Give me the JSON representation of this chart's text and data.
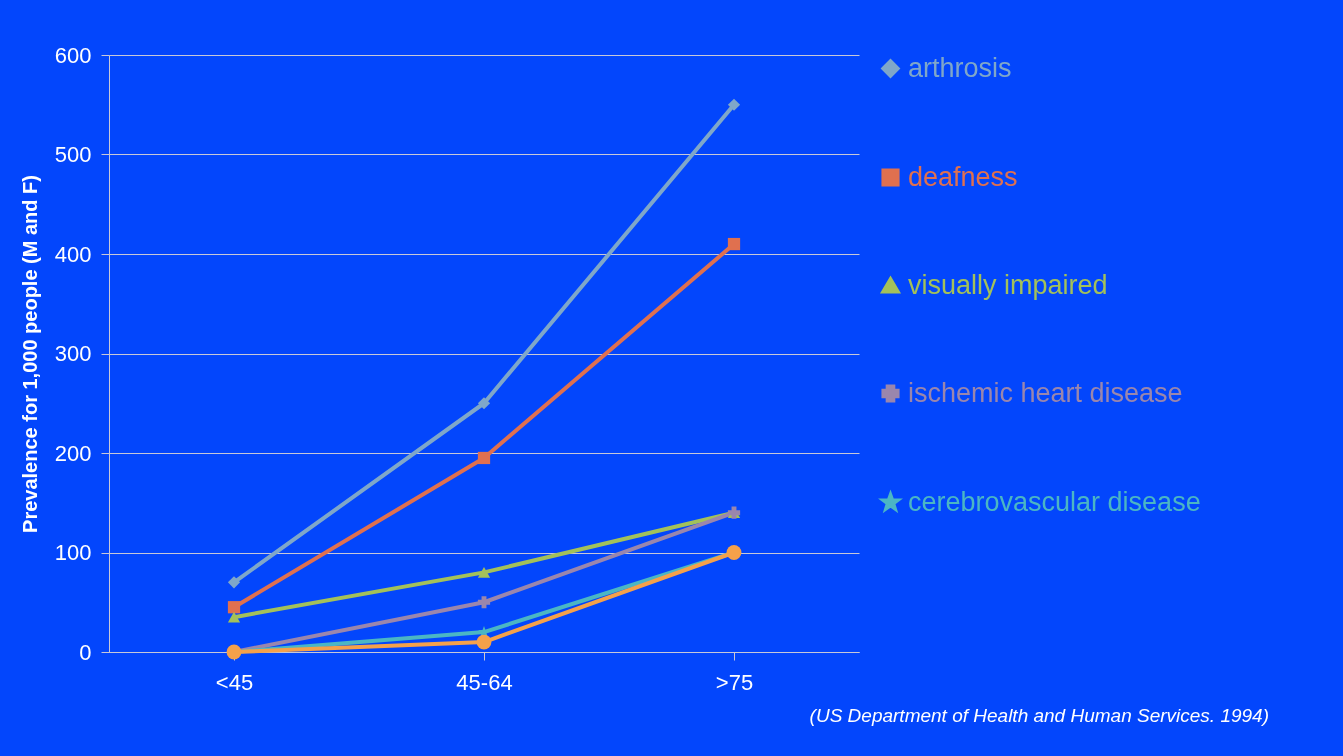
{
  "chart_data": {
    "type": "line",
    "ylabel": "Prevalence for 1,000 people (M and F)",
    "categories": [
      "<45",
      "45-64",
      ">75"
    ],
    "ylim": [
      0,
      600
    ],
    "yticks": [
      0,
      100,
      200,
      300,
      400,
      500,
      600
    ],
    "grid": "y",
    "legend": "right",
    "annotations": [
      "(US Department of Health and Human Services. 1994)"
    ],
    "series": [
      {
        "name": "arthrosis",
        "color": "#7fa7c9",
        "marker": "diamond",
        "values": [
          70,
          250,
          550
        ]
      },
      {
        "name": "deafness",
        "color": "#e0704f",
        "marker": "square",
        "values": [
          45,
          195,
          410
        ]
      },
      {
        "name": "visually impaired",
        "color": "#a3c15a",
        "marker": "triangle",
        "values": [
          35,
          80,
          140
        ]
      },
      {
        "name": "ischemic heart disease",
        "color": "#9a86ad",
        "marker": "cross",
        "values": [
          0,
          50,
          140
        ]
      },
      {
        "name": "cerebrovascular disease",
        "color": "#4bb6c4",
        "marker": "star",
        "values": [
          0,
          20,
          100
        ]
      },
      {
        "color": "#f5a14a",
        "marker": "circle",
        "values": [
          0,
          10,
          100
        ]
      }
    ]
  }
}
